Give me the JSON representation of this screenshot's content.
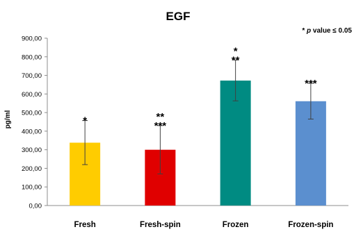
{
  "chart_data": {
    "type": "bar",
    "title": "EGF",
    "annotation": "* p value ≤ 0.05",
    "annotation_parts": {
      "star": "*",
      "p": "p",
      "rest": " value ≤ 0.05"
    },
    "ylabel": "pg/ml",
    "xlabel": "",
    "ylim": [
      0,
      900
    ],
    "yticks": [
      "0,00",
      "100,00",
      "200,00",
      "300,00",
      "400,00",
      "500,00",
      "600,00",
      "700,00",
      "800,00",
      "900,00"
    ],
    "grid": false,
    "categories": [
      "Fresh",
      "Fresh-spin",
      "Frozen",
      "Frozen-spin"
    ],
    "values": [
      338,
      300,
      672,
      561
    ],
    "error": [
      [
        220,
        457
      ],
      [
        170,
        430
      ],
      [
        563,
        783
      ],
      [
        465,
        658
      ]
    ],
    "significance": [
      [
        "*"
      ],
      [
        "**",
        "***"
      ],
      [
        "*",
        "**"
      ],
      [
        "***"
      ]
    ],
    "colors": [
      "#ffcc00",
      "#e00000",
      "#008b82",
      "#5b8fcf"
    ]
  }
}
